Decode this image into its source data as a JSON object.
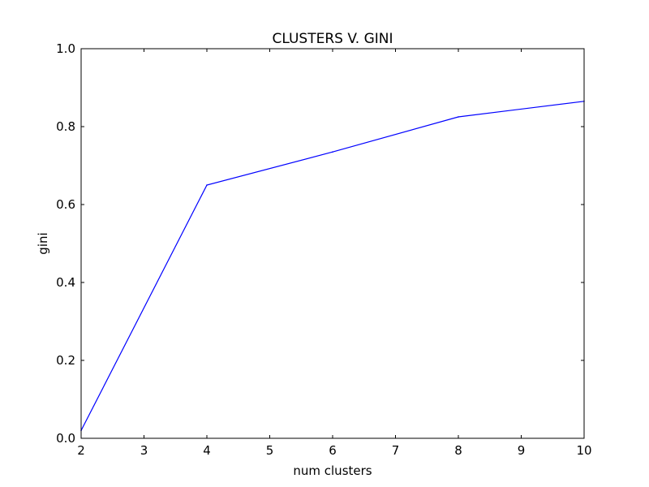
{
  "chart_data": {
    "type": "line",
    "title": "CLUSTERS V. GINI",
    "xlabel": "num clusters",
    "ylabel": "gini",
    "xlim": [
      2,
      10
    ],
    "ylim": [
      0.0,
      1.0
    ],
    "xticks": [
      2,
      3,
      4,
      5,
      6,
      7,
      8,
      9,
      10
    ],
    "xtick_labels": [
      "2",
      "3",
      "4",
      "5",
      "6",
      "7",
      "8",
      "9",
      "10"
    ],
    "yticks": [
      0.0,
      0.2,
      0.4,
      0.6,
      0.8,
      1.0
    ],
    "ytick_labels": [
      "0.0",
      "0.2",
      "0.4",
      "0.6",
      "0.8",
      "1.0"
    ],
    "grid": false,
    "legend": "none",
    "series": [
      {
        "x": [
          2,
          4,
          6,
          8,
          10
        ],
        "y": [
          0.02,
          0.65,
          0.735,
          0.825,
          0.865
        ],
        "color": "#0000ff"
      }
    ]
  }
}
